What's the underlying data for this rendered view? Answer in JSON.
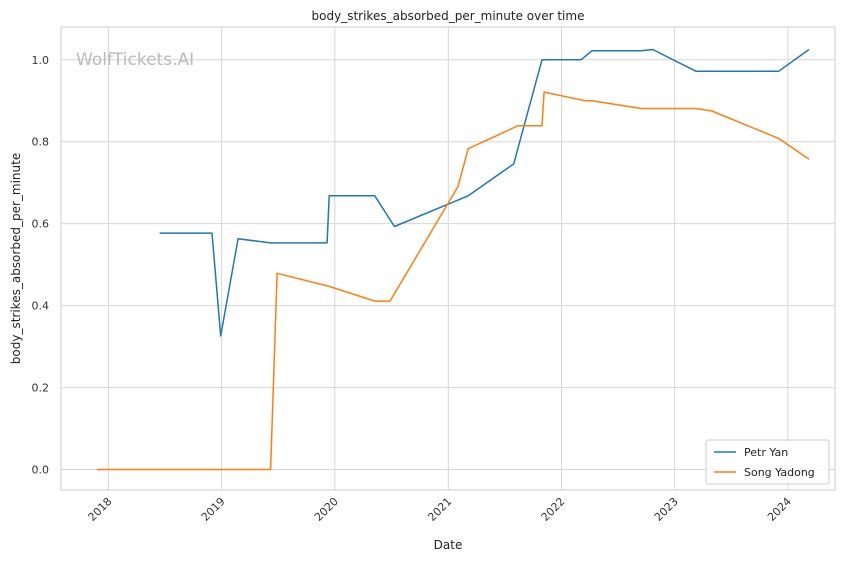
{
  "watermark": "WolfTickets.AI",
  "chart_data": {
    "type": "line",
    "title": "body_strikes_absorbed_per_minute over time",
    "xlabel": "Date",
    "ylabel": "body_strikes_absorbed_per_minute",
    "xlim": [
      "2017-08-01",
      "2024-06-01"
    ],
    "ylim": [
      -0.05,
      1.08
    ],
    "x_ticks": [
      "2018",
      "2019",
      "2020",
      "2021",
      "2022",
      "2023",
      "2024"
    ],
    "y_ticks": [
      "0.0",
      "0.2",
      "0.4",
      "0.6",
      "0.8",
      "1.0"
    ],
    "grid": true,
    "legend_position": "lower-right",
    "colors": {
      "Petr Yan": "#1f77b4",
      "Song Yadong": "#ff7f0e",
      "grid": "#d6d6d6",
      "axes": "#cccccc"
    },
    "series": [
      {
        "name": "Petr Yan",
        "color": "#1f77b4",
        "points": [
          [
            "2018-06-15",
            0.577
          ],
          [
            "2018-12-01",
            0.577
          ],
          [
            "2018-12-29",
            0.326
          ],
          [
            "2019-02-23",
            0.563
          ],
          [
            "2019-06-08",
            0.553
          ],
          [
            "2019-12-07",
            0.553
          ],
          [
            "2019-12-14",
            0.668
          ],
          [
            "2020-05-09",
            0.668
          ],
          [
            "2020-07-11",
            0.593
          ],
          [
            "2021-03-06",
            0.668
          ],
          [
            "2021-07-31",
            0.746
          ],
          [
            "2021-10-30",
            1.0
          ],
          [
            "2022-03-05",
            1.0
          ],
          [
            "2022-04-09",
            1.022
          ],
          [
            "2022-09-15",
            1.022
          ],
          [
            "2022-10-22",
            1.025
          ],
          [
            "2023-03-11",
            0.972
          ],
          [
            "2023-12-02",
            0.972
          ],
          [
            "2024-03-09",
            1.025
          ]
        ]
      },
      {
        "name": "Song Yadong",
        "color": "#ff7f0e",
        "points": [
          [
            "2017-11-25",
            0.0
          ],
          [
            "2019-06-08",
            0.0
          ],
          [
            "2019-06-29",
            0.479
          ],
          [
            "2019-12-14",
            0.447
          ],
          [
            "2020-05-09",
            0.411
          ],
          [
            "2020-06-27",
            0.411
          ],
          [
            "2021-02-01",
            0.69
          ],
          [
            "2021-03-06",
            0.783
          ],
          [
            "2021-08-14",
            0.839
          ],
          [
            "2021-10-30",
            0.839
          ],
          [
            "2021-11-06",
            0.921
          ],
          [
            "2022-03-19",
            0.9
          ],
          [
            "2022-04-09",
            0.9
          ],
          [
            "2022-09-15",
            0.881
          ],
          [
            "2023-03-11",
            0.881
          ],
          [
            "2023-05-01",
            0.875
          ],
          [
            "2023-12-02",
            0.808
          ],
          [
            "2024-03-09",
            0.757
          ]
        ]
      }
    ]
  }
}
